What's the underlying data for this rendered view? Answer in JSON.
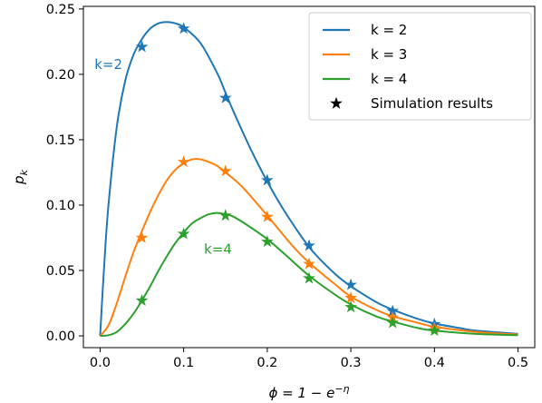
{
  "chart_data": {
    "type": "line",
    "title": "",
    "xlabel": "ϕ = 1 − e",
    "xlabel_sup": "−η",
    "ylabel": "p",
    "ylabel_sub": "k",
    "xlim": [
      -0.02,
      0.52
    ],
    "ylim": [
      -0.009,
      0.252
    ],
    "xticks": [
      0.0,
      0.1,
      0.2,
      0.3,
      0.4,
      0.5
    ],
    "xtick_labels": [
      "0.0",
      "0.1",
      "0.2",
      "0.3",
      "0.4",
      "0.5"
    ],
    "yticks": [
      0.0,
      0.05,
      0.1,
      0.15,
      0.2,
      0.25
    ],
    "ytick_labels": [
      "0.00",
      "0.05",
      "0.10",
      "0.15",
      "0.20",
      "0.25"
    ],
    "grid": false,
    "legend_position": "top-right",
    "series": [
      {
        "name": "k = 2",
        "color": "#1f77b4",
        "x": [
          0.0,
          0.005,
          0.01,
          0.02,
          0.03,
          0.04,
          0.05,
          0.06,
          0.07,
          0.08,
          0.09,
          0.1,
          0.12,
          0.14,
          0.15,
          0.16,
          0.18,
          0.2,
          0.22,
          0.25,
          0.28,
          0.3,
          0.33,
          0.35,
          0.38,
          0.4,
          0.43,
          0.45,
          0.5
        ],
        "y": [
          0.0,
          0.055,
          0.1,
          0.16,
          0.195,
          0.215,
          0.227,
          0.235,
          0.239,
          0.24,
          0.239,
          0.236,
          0.224,
          0.201,
          0.186,
          0.171,
          0.143,
          0.118,
          0.096,
          0.068,
          0.048,
          0.038,
          0.026,
          0.02,
          0.013,
          0.0095,
          0.006,
          0.004,
          0.0015
        ]
      },
      {
        "name": "k = 3",
        "color": "#ff7f0e",
        "x": [
          0.0,
          0.01,
          0.02,
          0.03,
          0.04,
          0.05,
          0.06,
          0.07,
          0.08,
          0.09,
          0.1,
          0.11,
          0.12,
          0.13,
          0.14,
          0.15,
          0.17,
          0.2,
          0.23,
          0.25,
          0.28,
          0.3,
          0.33,
          0.35,
          0.38,
          0.4,
          0.45,
          0.5
        ],
        "y": [
          0.0,
          0.008,
          0.025,
          0.045,
          0.064,
          0.08,
          0.095,
          0.108,
          0.119,
          0.127,
          0.132,
          0.135,
          0.135,
          0.133,
          0.13,
          0.125,
          0.114,
          0.092,
          0.069,
          0.056,
          0.04,
          0.03,
          0.02,
          0.015,
          0.01,
          0.007,
          0.003,
          0.001
        ]
      },
      {
        "name": "k = 4",
        "color": "#2ca02c",
        "x": [
          0.0,
          0.01,
          0.02,
          0.03,
          0.04,
          0.05,
          0.06,
          0.07,
          0.08,
          0.09,
          0.1,
          0.11,
          0.12,
          0.13,
          0.14,
          0.15,
          0.16,
          0.18,
          0.2,
          0.22,
          0.25,
          0.28,
          0.3,
          0.33,
          0.35,
          0.38,
          0.4,
          0.45,
          0.5
        ],
        "y": [
          0.0,
          0.0005,
          0.003,
          0.009,
          0.017,
          0.027,
          0.038,
          0.05,
          0.061,
          0.071,
          0.079,
          0.086,
          0.09,
          0.093,
          0.094,
          0.093,
          0.091,
          0.083,
          0.074,
          0.063,
          0.046,
          0.032,
          0.024,
          0.015,
          0.011,
          0.006,
          0.004,
          0.0015,
          0.0005
        ]
      }
    ],
    "simulation": {
      "name": "Simulation results",
      "marker_color": "#000000",
      "points": [
        {
          "series": 0,
          "x": [
            0.05,
            0.1,
            0.15,
            0.2,
            0.25,
            0.3,
            0.35,
            0.4
          ],
          "y": [
            0.221,
            0.235,
            0.182,
            0.119,
            0.069,
            0.039,
            0.019,
            0.009
          ]
        },
        {
          "series": 1,
          "x": [
            0.05,
            0.1,
            0.15,
            0.2,
            0.25,
            0.3,
            0.35,
            0.4
          ],
          "y": [
            0.075,
            0.133,
            0.126,
            0.091,
            0.055,
            0.029,
            0.014,
            0.006
          ]
        },
        {
          "series": 2,
          "x": [
            0.05,
            0.1,
            0.15,
            0.2,
            0.25,
            0.3,
            0.35,
            0.4
          ],
          "y": [
            0.027,
            0.078,
            0.092,
            0.072,
            0.044,
            0.022,
            0.01,
            0.004
          ]
        }
      ]
    },
    "annotations": [
      {
        "text": "k=2",
        "color": "#1f77b4",
        "x": 0.01,
        "y": 0.204
      },
      {
        "text": "k=4",
        "color": "#2ca02c",
        "x": 0.141,
        "y": 0.063
      }
    ]
  }
}
